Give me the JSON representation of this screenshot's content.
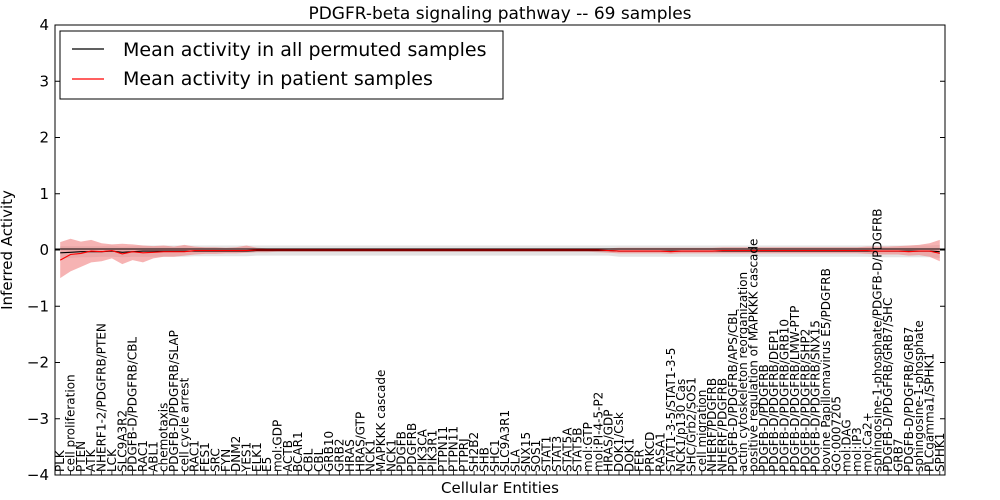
{
  "chart_data": {
    "type": "line",
    "title": "PDGFR-beta signaling pathway -- 69 samples",
    "xlabel": "Cellular Entities",
    "ylabel": "Inferred Activity",
    "ylim": [
      -4,
      4
    ],
    "yticks": [
      -4,
      -3,
      -2,
      -1,
      0,
      1,
      2,
      3,
      4
    ],
    "legend_position": "top-left",
    "colors": {
      "permuted_line": "#000000",
      "patient_line": "#ff0000",
      "permuted_band": "#d9d9d9",
      "patient_band": "#f08080",
      "zero_line": "#000000"
    },
    "categories": [
      "PLK",
      "cell proliferation",
      "PTEN",
      "ATK",
      "NHERF1-2/PDGFRB/PTEN",
      "LCK",
      "SLC9A3R2",
      "PDGFB-D/PDGFRB/CBL",
      "RAC1",
      "ABL1",
      "chemotaxis",
      "PDGFB-D/PDGFRB/SLAP",
      "cell cycle arrest",
      "RAC1",
      "FES1",
      "SRC",
      "FYN",
      "DNM2",
      "YES1",
      "ELK1",
      "E5",
      "mol:GDP",
      "ACTB",
      "BCAR1",
      "CBL",
      "CBL",
      "GRB10",
      "GRB2",
      "HRAS",
      "HRAS/GTP",
      "NCK1",
      "MAPKKK cascade",
      "NCK1",
      "PDGFB",
      "PDGFRB",
      "PIK3CA",
      "PIK3R1",
      "PTPN11",
      "PTPN11",
      "PTPRJ",
      "SH2B2",
      "SHB",
      "SHC1",
      "SLC9A3R1",
      "SLA",
      "SNX15",
      "SOS1",
      "STAT1",
      "STAT3",
      "STAT5A",
      "STAT5B",
      "mol:GTP",
      "mol:PI-4-5-P2",
      "HRAS/GDP",
      "DOK1/Csk",
      "DOK1",
      "FER",
      "PRKCD",
      "RASA1",
      "STAT1-3-5/STAT1-3-5",
      "NCK1/p130 Cas",
      "SHC/Grb2/SOS1",
      "cell migration",
      "NHERF/PDGFRB",
      "NHERF/PDGFRB",
      "PDGFB-D/PDGFRB/APS/CBL",
      "actin cytoskeleton reorganization",
      "positive regulation of MAPKKK cascade",
      "PDGFB-D/PDGFRB",
      "PDGFB-D/PDGFRB/DEP1",
      "PDGFB-D/PDGFRB/GRB10",
      "PDGFB-D/PDGFRB/LMW-PTP",
      "PDGFB-D/PDGFRB/SHP2",
      "PDGFB-D/PDGFRB/SNX15",
      "bovine Papillomavirus E5/PDGFRB",
      "GO:0007205",
      "mol:DAG",
      "mol:IP3",
      "mol:Ca2+",
      "sphingosine-1-phosphate/PDGFB-D/PDGFRB",
      "PDGFB-D/PDGFRB/GRB7/SHC",
      "GRB7",
      "PDGFB-D/PDGFRB/GRB7",
      "sphingosine-1-phosphate",
      "PLCgamma1/SPHK1",
      "SPHK1"
    ],
    "series": [
      {
        "name": "Mean activity in all permuted samples",
        "values": [
          -0.05,
          -0.04,
          -0.03,
          -0.03,
          -0.03,
          -0.02,
          -0.04,
          -0.03,
          -0.02,
          -0.02,
          -0.02,
          -0.02,
          -0.02,
          -0.02,
          -0.02,
          -0.02,
          -0.02,
          -0.02,
          -0.02,
          -0.01,
          -0.01,
          -0.01,
          -0.01,
          -0.01,
          -0.01,
          -0.01,
          -0.01,
          -0.01,
          -0.01,
          -0.01,
          -0.01,
          -0.01,
          -0.01,
          -0.01,
          -0.01,
          -0.01,
          -0.01,
          -0.01,
          -0.01,
          -0.01,
          -0.01,
          -0.01,
          -0.01,
          -0.01,
          -0.01,
          -0.01,
          -0.01,
          -0.01,
          -0.01,
          -0.01,
          -0.01,
          -0.01,
          -0.01,
          -0.01,
          -0.02,
          -0.02,
          -0.02,
          -0.02,
          -0.02,
          -0.02,
          -0.02,
          -0.02,
          -0.02,
          -0.02,
          -0.02,
          -0.02,
          -0.02,
          -0.02,
          -0.02,
          -0.02,
          -0.02,
          -0.02,
          -0.02,
          -0.02,
          -0.02,
          -0.02,
          -0.02,
          -0.02,
          -0.02,
          -0.02,
          -0.02,
          -0.02,
          -0.02,
          -0.02,
          -0.02,
          -0.03
        ],
        "lower": [
          -0.15,
          -0.14,
          -0.13,
          -0.13,
          -0.12,
          -0.12,
          -0.13,
          -0.12,
          -0.12,
          -0.12,
          -0.12,
          -0.12,
          -0.12,
          -0.11,
          -0.11,
          -0.11,
          -0.11,
          -0.11,
          -0.11,
          -0.1,
          -0.1,
          -0.1,
          -0.1,
          -0.1,
          -0.1,
          -0.1,
          -0.1,
          -0.1,
          -0.1,
          -0.1,
          -0.1,
          -0.1,
          -0.1,
          -0.1,
          -0.1,
          -0.1,
          -0.1,
          -0.1,
          -0.1,
          -0.1,
          -0.1,
          -0.1,
          -0.1,
          -0.1,
          -0.1,
          -0.1,
          -0.1,
          -0.1,
          -0.1,
          -0.1,
          -0.1,
          -0.1,
          -0.1,
          -0.1,
          -0.12,
          -0.12,
          -0.12,
          -0.12,
          -0.12,
          -0.12,
          -0.12,
          -0.12,
          -0.12,
          -0.12,
          -0.12,
          -0.12,
          -0.12,
          -0.12,
          -0.12,
          -0.12,
          -0.12,
          -0.12,
          -0.12,
          -0.12,
          -0.12,
          -0.12,
          -0.12,
          -0.12,
          -0.12,
          -0.13,
          -0.13,
          -0.13,
          -0.13,
          -0.13,
          -0.13,
          -0.14
        ],
        "upper": [
          0.07,
          0.07,
          0.07,
          0.07,
          0.07,
          0.08,
          0.06,
          0.07,
          0.08,
          0.08,
          0.08,
          0.08,
          0.08,
          0.08,
          0.08,
          0.08,
          0.08,
          0.08,
          0.08,
          0.08,
          0.08,
          0.08,
          0.08,
          0.08,
          0.08,
          0.08,
          0.08,
          0.08,
          0.08,
          0.08,
          0.08,
          0.08,
          0.08,
          0.08,
          0.08,
          0.08,
          0.08,
          0.08,
          0.08,
          0.08,
          0.08,
          0.08,
          0.08,
          0.08,
          0.08,
          0.08,
          0.08,
          0.08,
          0.08,
          0.08,
          0.08,
          0.08,
          0.08,
          0.08,
          0.08,
          0.08,
          0.08,
          0.08,
          0.08,
          0.08,
          0.08,
          0.08,
          0.08,
          0.08,
          0.08,
          0.08,
          0.08,
          0.08,
          0.08,
          0.08,
          0.08,
          0.08,
          0.08,
          0.08,
          0.08,
          0.08,
          0.08,
          0.08,
          0.08,
          0.08,
          0.08,
          0.08,
          0.08,
          0.08,
          0.08,
          0.09
        ]
      },
      {
        "name": "Mean activity in patient samples",
        "values": [
          -0.18,
          -0.08,
          -0.06,
          -0.02,
          -0.03,
          -0.01,
          -0.07,
          -0.03,
          -0.05,
          -0.04,
          -0.03,
          -0.03,
          -0.03,
          -0.01,
          -0.01,
          -0.01,
          -0.01,
          -0.01,
          -0.01,
          0.0,
          0.0,
          0.0,
          0.0,
          0.0,
          0.0,
          0.0,
          0.0,
          0.0,
          0.0,
          0.0,
          0.0,
          0.0,
          0.0,
          0.0,
          0.0,
          0.0,
          0.0,
          0.0,
          0.0,
          0.0,
          0.0,
          0.0,
          0.0,
          0.0,
          0.0,
          0.0,
          0.0,
          0.0,
          0.0,
          0.0,
          0.0,
          0.0,
          0.0,
          -0.01,
          -0.02,
          -0.02,
          -0.02,
          -0.02,
          -0.02,
          -0.03,
          -0.02,
          -0.02,
          -0.02,
          -0.02,
          -0.01,
          -0.01,
          -0.01,
          -0.01,
          -0.01,
          -0.01,
          -0.01,
          -0.01,
          -0.01,
          -0.01,
          -0.01,
          -0.01,
          -0.01,
          -0.01,
          -0.01,
          -0.02,
          -0.02,
          -0.02,
          -0.03,
          -0.02,
          -0.02,
          -0.06
        ],
        "lower": [
          -0.5,
          -0.38,
          -0.3,
          -0.22,
          -0.2,
          -0.15,
          -0.25,
          -0.18,
          -0.22,
          -0.15,
          -0.12,
          -0.12,
          -0.1,
          -0.08,
          -0.07,
          -0.07,
          -0.06,
          -0.06,
          -0.05,
          -0.04,
          -0.04,
          -0.03,
          -0.03,
          -0.03,
          -0.03,
          -0.03,
          -0.03,
          -0.03,
          -0.03,
          -0.03,
          -0.03,
          -0.03,
          -0.03,
          -0.03,
          -0.03,
          -0.03,
          -0.03,
          -0.03,
          -0.03,
          -0.03,
          -0.03,
          -0.03,
          -0.03,
          -0.03,
          -0.03,
          -0.03,
          -0.03,
          -0.03,
          -0.03,
          -0.03,
          -0.03,
          -0.03,
          -0.04,
          -0.05,
          -0.06,
          -0.06,
          -0.06,
          -0.06,
          -0.06,
          -0.07,
          -0.06,
          -0.06,
          -0.06,
          -0.06,
          -0.06,
          -0.06,
          -0.06,
          -0.06,
          -0.06,
          -0.06,
          -0.06,
          -0.06,
          -0.06,
          -0.06,
          -0.06,
          -0.06,
          -0.06,
          -0.06,
          -0.07,
          -0.08,
          -0.08,
          -0.08,
          -0.1,
          -0.09,
          -0.12,
          -0.2
        ],
        "upper": [
          0.14,
          0.2,
          0.15,
          0.18,
          0.12,
          0.1,
          0.11,
          0.1,
          0.08,
          0.07,
          0.08,
          0.06,
          0.09,
          0.06,
          0.05,
          0.05,
          0.04,
          0.05,
          0.08,
          0.04,
          0.03,
          0.03,
          0.03,
          0.03,
          0.03,
          0.03,
          0.03,
          0.03,
          0.03,
          0.03,
          0.03,
          0.03,
          0.03,
          0.03,
          0.03,
          0.03,
          0.03,
          0.03,
          0.03,
          0.03,
          0.03,
          0.03,
          0.03,
          0.03,
          0.03,
          0.03,
          0.03,
          0.03,
          0.03,
          0.03,
          0.03,
          0.03,
          0.03,
          0.03,
          0.04,
          0.04,
          0.04,
          0.04,
          0.04,
          0.04,
          0.04,
          0.04,
          0.04,
          0.04,
          0.05,
          0.05,
          0.05,
          0.05,
          0.05,
          0.05,
          0.05,
          0.05,
          0.05,
          0.05,
          0.05,
          0.05,
          0.05,
          0.05,
          0.06,
          0.06,
          0.06,
          0.07,
          0.08,
          0.09,
          0.12,
          0.18
        ]
      }
    ]
  }
}
